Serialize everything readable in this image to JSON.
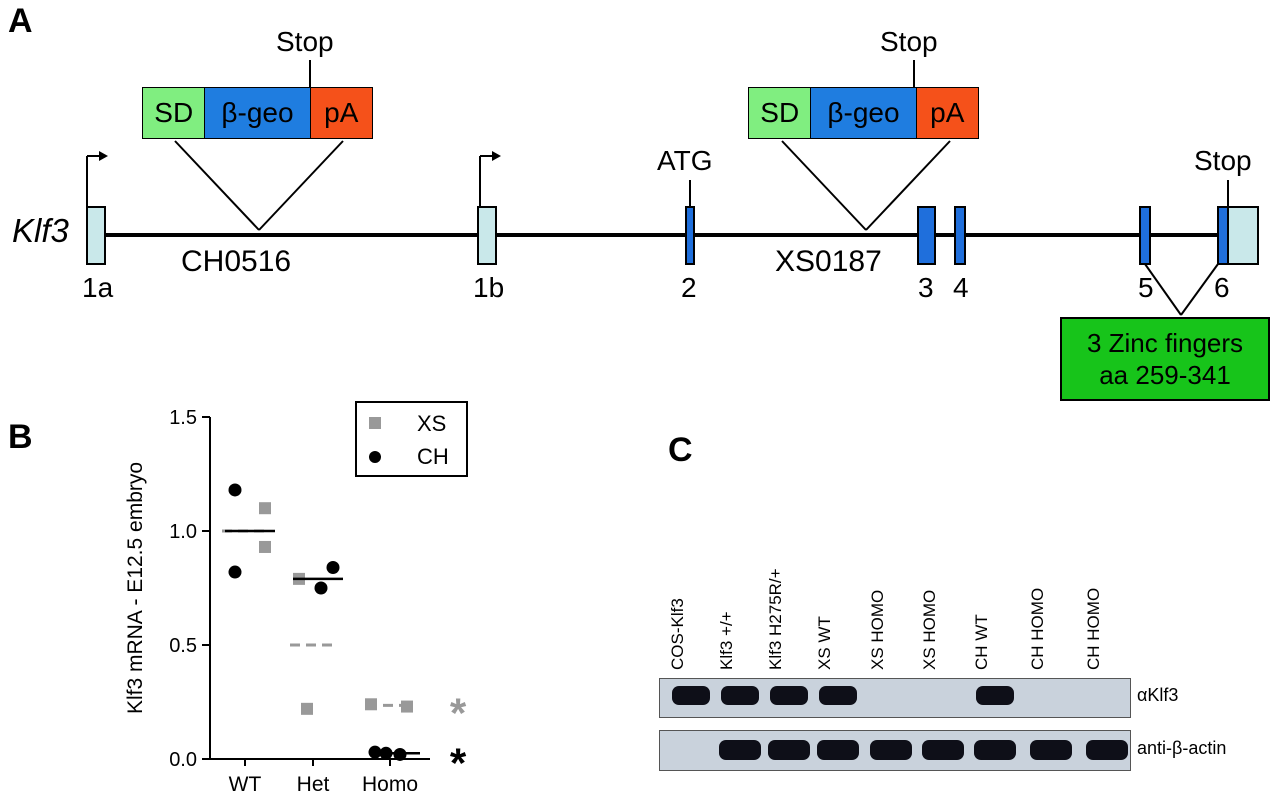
{
  "panel_a": {
    "letter": "A",
    "gene_label": "Klf3",
    "cassette_left": {
      "sd": "SD",
      "geo": "β-geo",
      "pa": "pA",
      "stop": "Stop",
      "insertion": "CH0516"
    },
    "cassette_right": {
      "sd": "SD",
      "geo": "β-geo",
      "pa": "pA",
      "stop": "Stop",
      "insertion": "XS0187"
    },
    "atg": "ATG",
    "stop_exon6": "Stop",
    "exons": [
      "1a",
      "1b",
      "2",
      "3",
      "4",
      "5",
      "6"
    ],
    "zinc_line1": "3 Zinc fingers",
    "zinc_line2": "aa 259-341",
    "colors": {
      "sd": "#80ee80",
      "geo": "#1f7de0",
      "pa": "#f5511a",
      "exon_utr": "#c9e8ea",
      "exon_coding": "#1f6fdc",
      "zinc": "#17c41a"
    }
  },
  "panel_b": {
    "letter": "B",
    "legend": {
      "xs": "XS",
      "ch": "CH"
    }
  },
  "panel_c": {
    "letter": "C",
    "lanes": [
      "COS-Klf3",
      "Klf3 +/+",
      "Klf3 H275R/+",
      "XS WT",
      "XS HOMO",
      "XS HOMO",
      "CH WT",
      "CH HOMO",
      "CH HOMO"
    ],
    "klf3_present": [
      1,
      1,
      1,
      1,
      0,
      0,
      1,
      0,
      0
    ],
    "actin_present": [
      0,
      1,
      1,
      1,
      1,
      1,
      1,
      1,
      1
    ],
    "label_klf3": "αKlf3",
    "label_actin": "anti-β-actin"
  },
  "chart_data": {
    "type": "scatter",
    "title": "",
    "xlabel": "",
    "ylabel": "Klf3 mRNA - E12.5 embryo",
    "categories": [
      "WT",
      "Het",
      "Homo"
    ],
    "yticks": [
      "0.0",
      "0.5",
      "1.0",
      "1.5"
    ],
    "ylim": [
      0,
      1.5
    ],
    "series": [
      {
        "name": "XS",
        "color": "#999999",
        "marker": "square",
        "points": [
          {
            "x": "WT",
            "y": 1.1
          },
          {
            "x": "WT",
            "y": 0.93
          },
          {
            "x": "Het",
            "y": 0.79
          },
          {
            "x": "Het",
            "y": 0.22
          },
          {
            "x": "Homo",
            "y": 0.24
          },
          {
            "x": "Homo",
            "y": 0.23
          }
        ],
        "means": [
          1.0,
          0.5,
          0.235
        ],
        "significance": "*"
      },
      {
        "name": "CH",
        "color": "#000000",
        "marker": "circle",
        "points": [
          {
            "x": "WT",
            "y": 1.18
          },
          {
            "x": "WT",
            "y": 0.82
          },
          {
            "x": "Het",
            "y": 0.84
          },
          {
            "x": "Het",
            "y": 0.75
          },
          {
            "x": "Homo",
            "y": 0.03
          },
          {
            "x": "Homo",
            "y": 0.025
          },
          {
            "x": "Homo",
            "y": 0.02
          }
        ],
        "means": [
          1.0,
          0.79,
          0.025
        ],
        "significance": "*"
      }
    ]
  }
}
